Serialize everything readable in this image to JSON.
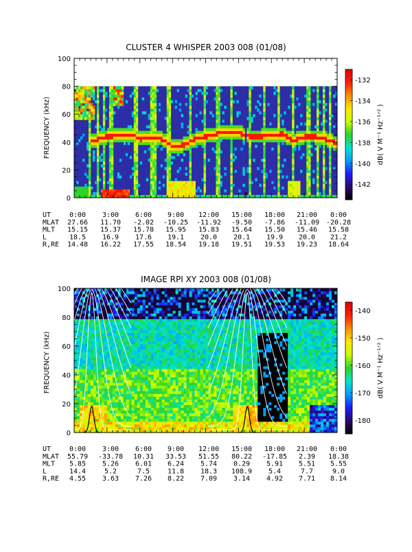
{
  "colors": {
    "background": "#2d2da8",
    "frame": "#000000",
    "resonance": "#ffffff",
    "colorbar_stops": [
      "#000000",
      "#2a0a6e",
      "#1c1cff",
      "#00a0ff",
      "#00e6c8",
      "#2bd42b",
      "#c8ff00",
      "#ffe600",
      "#ff8c00",
      "#ff1e00",
      "#e00000"
    ]
  },
  "chart_data": [
    {
      "type": "heatmap",
      "title": "CLUSTER 4 WHISPER 2003 008 (01/08)",
      "ylabel": "FREQUENCY (kHz)",
      "ylim": [
        0,
        100
      ],
      "yticks": [
        "0",
        "20",
        "40",
        "60",
        "80",
        "100"
      ],
      "data_top_khz": 80,
      "xlim_hours": [
        0,
        24
      ],
      "colorbar": {
        "label": "dB( V M⁻¹ Hz⁻¹ᐟ² )",
        "range": [
          -143.5,
          -131
        ],
        "ticks": [
          "-132",
          "-134",
          "-136",
          "-138",
          "-140",
          "-142"
        ]
      },
      "trace_freq_khz": [
        [
          1.5,
          40
        ],
        [
          2.5,
          43
        ],
        [
          3,
          44
        ],
        [
          5.5,
          45
        ],
        [
          6,
          42
        ],
        [
          7,
          43
        ],
        [
          8,
          42
        ],
        [
          9,
          37
        ],
        [
          10,
          38
        ],
        [
          11,
          42
        ],
        [
          12,
          44
        ],
        [
          13,
          46
        ],
        [
          14,
          47
        ],
        [
          15,
          47
        ],
        [
          16,
          44
        ],
        [
          17,
          44
        ],
        [
          18,
          45
        ],
        [
          19,
          46
        ],
        [
          20,
          41
        ],
        [
          21,
          44
        ],
        [
          22,
          44
        ],
        [
          23,
          42
        ],
        [
          24,
          39
        ]
      ],
      "ephemeris": {
        "labels": [
          "UT",
          "MLAT",
          "MLT",
          "L",
          "R,RE"
        ],
        "rows": [
          [
            "0:00",
            "3:00",
            "6:00",
            "9:00",
            "12:00",
            "15:00",
            "18:00",
            "21:00",
            "0:00"
          ],
          [
            "27.66",
            "11.70",
            "-2.02",
            "-10.25",
            "-11.92",
            "-9.50",
            "-7.86",
            "-11.09",
            "-20.28"
          ],
          [
            "15.15",
            "15.37",
            "15.78",
            "15.95",
            "15.83",
            "15.64",
            "15.50",
            "15.46",
            "15.58"
          ],
          [
            "18.5",
            "16.9",
            "17.6",
            "19.1",
            "20.0",
            "20.1",
            "19.9",
            "20.0",
            "21.2"
          ],
          [
            "14.48",
            "16.22",
            "17.55",
            "18.54",
            "19.18",
            "19.51",
            "19.53",
            "19.23",
            "18.64"
          ]
        ]
      }
    },
    {
      "type": "heatmap",
      "title": "IMAGE RPI XY 2003 008 (01/08)",
      "ylabel": "FREQUENCY (kHz)",
      "ylim": [
        0,
        100
      ],
      "yticks": [
        "0",
        "20",
        "40",
        "60",
        "80",
        "100"
      ],
      "xlim_hours": [
        0,
        24
      ],
      "colorbar": {
        "label": "dB( V M⁻¹ Hz⁻¹ᐟ² )",
        "range": [
          -185,
          -137
        ],
        "ticks": [
          "-140",
          "-150",
          "-160",
          "-170",
          "-180"
        ]
      },
      "perigee_hours": [
        1.6,
        15.8
      ],
      "ephemeris": {
        "labels": [
          "UT",
          "MLAT",
          "MLT",
          "L",
          "R,RE"
        ],
        "rows": [
          [
            "0:00",
            "3:00",
            "6:00",
            "9:00",
            "12:00",
            "15:00",
            "18:00",
            "21:00",
            "0:00"
          ],
          [
            "55.79",
            "-33.78",
            "10.31",
            "33.53",
            "51.55",
            "80.22",
            "-17.85",
            "2.39",
            "18.38"
          ],
          [
            "5.85",
            "5.26",
            "6.01",
            "6.24",
            "5.74",
            "0.29",
            "5.91",
            "5.51",
            "5.55"
          ],
          [
            "14.4",
            "5.2",
            "7.5",
            "11.8",
            "18.3",
            "108.9",
            "5.4",
            "7.7",
            "9.0"
          ],
          [
            "4.55",
            "3.63",
            "7.26",
            "8.22",
            "7.09",
            "3.14",
            "4.92",
            "7.71",
            "8.14"
          ]
        ]
      }
    }
  ]
}
